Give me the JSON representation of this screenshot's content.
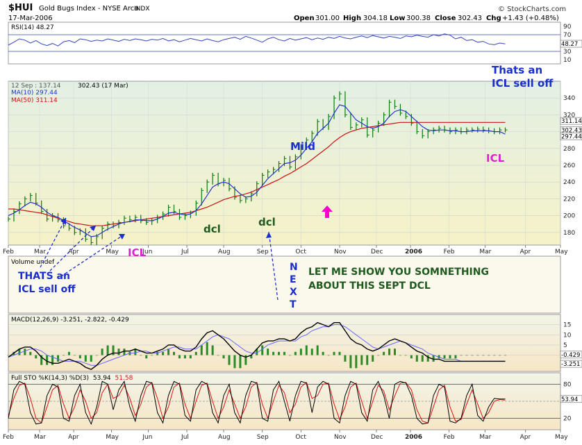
{
  "header": {
    "symbol": "$HUI",
    "name": "Gold Bugs Index - NYSE Arca",
    "exchange": "INDX",
    "date": "17-Mar-2006",
    "open_label": "Open",
    "open": "301.00",
    "high_label": "High",
    "high": "304.18",
    "low_label": "Low",
    "low": "300.38",
    "close_label": "Close",
    "close": "302.43",
    "chg_label": "Chg",
    "chg": "+1.43 (+0.48%)",
    "brand": "© StockCharts.com"
  },
  "chart_data": [
    {
      "type": "line",
      "id": "rsi",
      "legend": "RSI(14) 48.27",
      "ylim": [
        0,
        100
      ],
      "y_ticks": [
        10,
        30,
        50,
        70,
        90
      ],
      "reference_lines": [
        30,
        70
      ],
      "last_value": "48.27",
      "x": [
        0,
        6,
        12,
        18,
        24,
        30,
        36,
        42,
        48,
        54,
        60,
        66,
        72,
        78,
        84,
        90,
        96,
        102,
        108,
        114,
        120,
        126,
        132,
        138,
        144,
        150,
        156,
        162,
        168,
        174,
        180,
        186,
        192,
        198,
        204,
        210,
        216,
        222,
        228,
        234,
        240,
        246,
        252,
        258,
        264,
        270,
        276,
        282,
        288,
        294,
        300,
        306,
        312,
        318,
        324,
        330,
        336,
        342,
        348,
        354,
        360,
        366,
        372,
        378,
        384,
        390,
        396,
        402,
        408,
        414,
        420,
        426,
        432,
        438,
        444,
        450,
        456,
        462,
        468,
        474,
        480,
        486,
        492,
        498,
        504,
        510,
        516,
        522,
        528,
        534,
        540
      ],
      "values": [
        45,
        52,
        60,
        57,
        50,
        56,
        48,
        44,
        49,
        43,
        53,
        56,
        51,
        60,
        58,
        54,
        57,
        55,
        60,
        57,
        54,
        59,
        56,
        60,
        58,
        55,
        59,
        57,
        61,
        55,
        58,
        53,
        57,
        61,
        58,
        55,
        60,
        56,
        53,
        58,
        61,
        64,
        59,
        66,
        62,
        57,
        52,
        60,
        64,
        58,
        55,
        61,
        57,
        60,
        63,
        58,
        62,
        59,
        64,
        61,
        66,
        62,
        60,
        64,
        67,
        63,
        68,
        65,
        62,
        66,
        64,
        61,
        67,
        65,
        69,
        66,
        64,
        70,
        67,
        72,
        69,
        60,
        64,
        56,
        58,
        52,
        54,
        48,
        46,
        50,
        48
      ]
    },
    {
      "type": "line",
      "id": "price",
      "legend_top": "12 Sep : 137.14",
      "legend_close": "302.43 (17 Mar)",
      "series_names": [
        "MA(10) 297.44",
        "MA(50) 311.14"
      ],
      "ylim": [
        165,
        360
      ],
      "y_ticks": [
        180,
        200,
        220,
        240,
        260,
        280,
        300,
        320,
        340
      ],
      "right_labels": [
        "311.14",
        "302.43",
        "297.44"
      ],
      "x_ticks": [
        "Feb",
        "Mar",
        "Apr",
        "May",
        "Jun",
        "Jul",
        "Aug",
        "Sep",
        "Oct",
        "Nov",
        "Dec",
        "2006",
        "Feb",
        "Mar",
        "Apr",
        "May"
      ],
      "x_tick_values": [
        0,
        34,
        71,
        112,
        152,
        194,
        234,
        276,
        318,
        360,
        400,
        437,
        479,
        518,
        562,
        600
      ],
      "x": [
        0,
        6,
        12,
        18,
        24,
        30,
        36,
        42,
        48,
        54,
        60,
        66,
        72,
        78,
        84,
        90,
        96,
        102,
        108,
        114,
        120,
        126,
        132,
        138,
        144,
        150,
        156,
        162,
        168,
        174,
        180,
        186,
        192,
        198,
        204,
        210,
        216,
        222,
        228,
        234,
        240,
        246,
        252,
        258,
        264,
        270,
        276,
        282,
        288,
        294,
        300,
        306,
        312,
        318,
        324,
        330,
        336,
        342,
        348,
        354,
        360,
        366,
        372,
        378,
        384,
        390,
        396,
        402,
        408,
        414,
        420,
        426,
        432,
        438,
        444,
        450,
        456,
        462,
        468,
        474,
        480,
        486,
        492,
        498,
        504,
        510,
        516,
        522,
        528,
        534,
        540
      ],
      "close": [
        196,
        205,
        214,
        220,
        224,
        215,
        205,
        196,
        200,
        195,
        188,
        185,
        180,
        182,
        172,
        168,
        175,
        185,
        190,
        188,
        192,
        197,
        195,
        198,
        194,
        192,
        194,
        198,
        202,
        210,
        205,
        198,
        200,
        203,
        215,
        230,
        240,
        248,
        238,
        242,
        232,
        222,
        218,
        220,
        226,
        238,
        248,
        252,
        255,
        262,
        268,
        258,
        270,
        282,
        290,
        298,
        312,
        305,
        318,
        340,
        345,
        320,
        305,
        308,
        314,
        296,
        302,
        310,
        320,
        335,
        330,
        322,
        318,
        310,
        300,
        295,
        300,
        302,
        304,
        302,
        300,
        302,
        300,
        302,
        302,
        303,
        302,
        301,
        300,
        302,
        302
      ],
      "ma10": [
        200,
        203,
        207,
        212,
        216,
        214,
        210,
        204,
        200,
        198,
        194,
        190,
        186,
        183,
        179,
        175,
        176,
        180,
        184,
        187,
        190,
        192,
        193,
        195,
        195,
        194,
        194,
        196,
        199,
        203,
        204,
        202,
        201,
        202,
        206,
        214,
        224,
        234,
        238,
        240,
        238,
        232,
        226,
        222,
        223,
        228,
        236,
        244,
        250,
        256,
        262,
        263,
        266,
        272,
        280,
        288,
        298,
        304,
        310,
        322,
        332,
        330,
        322,
        314,
        310,
        306,
        304,
        306,
        310,
        318,
        324,
        326,
        324,
        318,
        312,
        306,
        302,
        301,
        302,
        302,
        301,
        301,
        300,
        300,
        301,
        301,
        301,
        301,
        300,
        300,
        297
      ],
      "ma50": [
        208,
        208,
        207,
        206,
        205,
        204,
        203,
        201,
        199,
        197,
        195,
        193,
        191,
        190,
        189,
        188,
        188,
        188,
        189,
        190,
        191,
        192,
        193,
        194,
        195,
        196,
        197,
        198,
        199,
        200,
        201,
        202,
        203,
        204,
        206,
        208,
        210,
        213,
        216,
        219,
        221,
        223,
        224,
        226,
        228,
        231,
        234,
        237,
        240,
        243,
        247,
        250,
        254,
        258,
        262,
        267,
        272,
        277,
        282,
        288,
        293,
        297,
        300,
        302,
        304,
        305,
        306,
        307,
        308,
        309,
        310,
        311,
        311,
        311,
        311,
        311,
        311,
        311,
        311,
        311,
        311,
        311,
        311,
        311,
        311,
        311,
        311,
        311,
        311,
        311,
        311
      ]
    },
    {
      "type": "bar",
      "id": "volume",
      "legend": "Volume undef"
    },
    {
      "type": "line",
      "id": "macd",
      "legend": "MACD(12,26,9) -3.251, -2.822, -0.429",
      "ylim": [
        -8,
        20
      ],
      "y_ticks": [
        0,
        5,
        10,
        15
      ],
      "right_labels": [
        "-0.429",
        "-3.251"
      ],
      "x": [
        0,
        6,
        12,
        18,
        24,
        30,
        36,
        42,
        48,
        54,
        60,
        66,
        72,
        78,
        84,
        90,
        96,
        102,
        108,
        114,
        120,
        126,
        132,
        138,
        144,
        150,
        156,
        162,
        168,
        174,
        180,
        186,
        192,
        198,
        204,
        210,
        216,
        222,
        228,
        234,
        240,
        246,
        252,
        258,
        264,
        270,
        276,
        282,
        288,
        294,
        300,
        306,
        312,
        318,
        324,
        330,
        336,
        342,
        348,
        354,
        360,
        366,
        372,
        378,
        384,
        390,
        396,
        402,
        408,
        414,
        420,
        426,
        432,
        438,
        444,
        450,
        456,
        462,
        468,
        474,
        480,
        486,
        492,
        498,
        504,
        510,
        516,
        522,
        528,
        534,
        540
      ],
      "macd": [
        -1,
        1,
        3,
        4,
        4,
        2,
        -1,
        -3,
        -4,
        -4,
        -3,
        -2,
        -3,
        -4,
        -6,
        -7,
        -5,
        -2,
        0,
        1,
        1,
        2,
        2,
        3,
        2,
        1,
        1,
        2,
        3,
        5,
        5,
        3,
        2,
        2,
        4,
        8,
        11,
        12,
        10,
        8,
        5,
        2,
        0,
        -1,
        0,
        3,
        6,
        7,
        7,
        8,
        8,
        7,
        8,
        11,
        13,
        14,
        16,
        15,
        14,
        16,
        16,
        12,
        8,
        6,
        5,
        3,
        2,
        3,
        5,
        7,
        8,
        7,
        6,
        4,
        2,
        1,
        -1,
        -2,
        -2,
        -3,
        -3,
        -3,
        -3,
        -3,
        -3,
        -3,
        -3,
        -3,
        -3,
        -3,
        -3
      ],
      "signal": [
        -1,
        0,
        1,
        2,
        3,
        3,
        2,
        0,
        -1,
        -2,
        -3,
        -3,
        -3,
        -3,
        -4,
        -5,
        -5,
        -4,
        -3,
        -2,
        -1,
        0,
        1,
        1,
        2,
        2,
        1,
        1,
        2,
        3,
        4,
        4,
        3,
        3,
        3,
        5,
        7,
        9,
        10,
        9,
        8,
        6,
        4,
        2,
        1,
        1,
        3,
        5,
        6,
        7,
        7,
        7,
        7,
        9,
        10,
        12,
        13,
        14,
        14,
        15,
        15,
        14,
        12,
        10,
        8,
        6,
        4,
        3,
        4,
        5,
        6,
        7,
        6,
        5,
        4,
        3,
        1,
        0,
        -1,
        -2,
        -2,
        -2,
        -3,
        -3,
        -3,
        -3,
        -3,
        -3,
        -3,
        -3,
        -3
      ]
    },
    {
      "type": "line",
      "id": "stochastic",
      "legend_name": "Full STO %K(14,3) %D(3)",
      "legend_k": "53.94",
      "legend_d": "51.58",
      "ylim": [
        0,
        100
      ],
      "y_ticks": [
        20,
        50,
        80
      ],
      "right_labels": [
        "53.94"
      ],
      "x": [
        0,
        6,
        12,
        18,
        24,
        30,
        36,
        42,
        48,
        54,
        60,
        66,
        72,
        78,
        84,
        90,
        96,
        102,
        108,
        114,
        120,
        126,
        132,
        138,
        144,
        150,
        156,
        162,
        168,
        174,
        180,
        186,
        192,
        198,
        204,
        210,
        216,
        222,
        228,
        234,
        240,
        246,
        252,
        258,
        264,
        270,
        276,
        282,
        288,
        294,
        300,
        306,
        312,
        318,
        324,
        330,
        336,
        342,
        348,
        354,
        360,
        366,
        372,
        378,
        384,
        390,
        396,
        402,
        408,
        414,
        420,
        426,
        432,
        438,
        444,
        450,
        456,
        462,
        468,
        474,
        480,
        486,
        492,
        498,
        504,
        510,
        516,
        522,
        528,
        534,
        540
      ],
      "k": [
        20,
        70,
        85,
        80,
        30,
        10,
        12,
        60,
        80,
        75,
        20,
        15,
        60,
        80,
        30,
        10,
        40,
        85,
        80,
        35,
        70,
        85,
        40,
        15,
        60,
        85,
        82,
        30,
        12,
        60,
        85,
        80,
        25,
        15,
        70,
        85,
        80,
        30,
        12,
        60,
        80,
        30,
        12,
        60,
        85,
        82,
        20,
        15,
        70,
        85,
        50,
        15,
        60,
        85,
        82,
        30,
        75,
        85,
        80,
        20,
        12,
        60,
        85,
        80,
        30,
        15,
        70,
        85,
        60,
        20,
        80,
        85,
        82,
        60,
        20,
        10,
        12,
        60,
        80,
        75,
        15,
        12,
        20,
        60,
        80,
        25,
        15,
        40,
        55,
        54,
        54
      ],
      "d": [
        25,
        55,
        78,
        82,
        55,
        20,
        12,
        40,
        70,
        78,
        45,
        20,
        40,
        70,
        50,
        20,
        30,
        65,
        80,
        55,
        60,
        78,
        55,
        25,
        45,
        75,
        83,
        55,
        20,
        40,
        75,
        82,
        45,
        20,
        50,
        78,
        82,
        50,
        20,
        40,
        70,
        45,
        20,
        40,
        75,
        83,
        45,
        20,
        50,
        78,
        65,
        30,
        45,
        75,
        83,
        55,
        60,
        80,
        82,
        45,
        18,
        40,
        75,
        82,
        50,
        20,
        50,
        78,
        68,
        35,
        60,
        82,
        83,
        70,
        35,
        15,
        12,
        40,
        70,
        78,
        40,
        15,
        18,
        45,
        70,
        45,
        20,
        30,
        50,
        53,
        52
      ]
    }
  ],
  "annotations": {
    "icl_sell_off_top": "Thats an ICL sell off",
    "icl_sell_off_left": "THATS an ICL sell off",
    "icl_low": "ICL",
    "icl_right": "ICL",
    "mild": "Mild",
    "dcl_1": "dcl",
    "dcl_2": "dcl",
    "next": "NEXT",
    "show_text": "LET ME SHOW YOU SOMNETHING ABOUT THIS SEPT DCL"
  },
  "colors": {
    "price_bars": "#0a7a0a",
    "ma10": "#2233cc",
    "ma50": "#cc1111",
    "rsi_line": "#3344bb",
    "macd_line": "#000000",
    "signal_line": "#6666ff",
    "histogram": "#2a8a2a",
    "stoch_k": "#000000",
    "stoch_d": "#dd1111",
    "annotation_blue": "#1a2ecc",
    "annotation_green": "#1f5a1f",
    "annotation_magenta": "#e020d0"
  }
}
